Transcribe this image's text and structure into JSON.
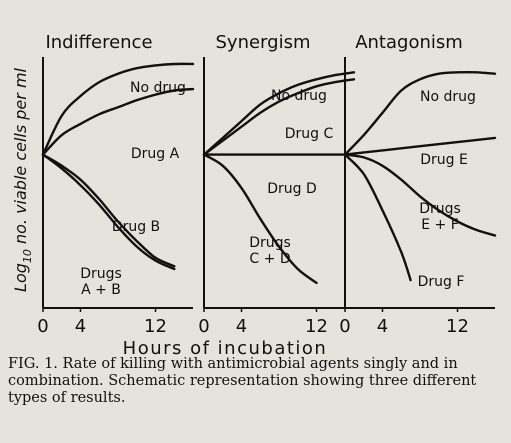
{
  "chart_data": {
    "type": "line",
    "xlabel": "Hours of incubation",
    "ylabel": "Log10 no. viable cells per ml",
    "ylabel_main": "Log",
    "ylabel_sub": "10",
    "ylabel_rest": " no. viable cells per ml",
    "x_ticks": [
      "0",
      "4",
      "12"
    ],
    "xlim": [
      0,
      16
    ],
    "panels": [
      {
        "title": "Indifference",
        "series": [
          {
            "name": "No drug",
            "label_lines": [
              "No drug"
            ],
            "x": [
              0,
              2,
              4,
              6,
              8,
              10,
              12,
              14,
              16
            ],
            "y": [
              5.5,
              6.9,
              7.6,
              8.1,
              8.4,
              8.6,
              8.7,
              8.75,
              8.75
            ]
          },
          {
            "name": "Drug A",
            "label_lines": [
              "Drug A"
            ],
            "x": [
              0,
              2,
              4,
              6,
              8,
              10,
              12,
              14,
              16
            ],
            "y": [
              5.5,
              6.2,
              6.6,
              6.95,
              7.2,
              7.45,
              7.65,
              7.8,
              7.85
            ]
          },
          {
            "name": "Drug B",
            "label_lines": [
              "Drug B"
            ],
            "x": [
              0,
              2,
              4,
              6,
              8,
              10,
              12,
              14
            ],
            "y": [
              5.5,
              5.1,
              4.6,
              3.9,
              3.1,
              2.4,
              1.8,
              1.5
            ]
          },
          {
            "name": "Drugs A + B",
            "label_lines": [
              "Drugs",
              "A + B"
            ],
            "x": [
              0,
              2,
              4,
              6,
              8,
              10,
              12,
              14
            ],
            "y": [
              5.5,
              5.0,
              4.4,
              3.7,
              2.9,
              2.2,
              1.7,
              1.4
            ]
          }
        ]
      },
      {
        "title": "Synergism",
        "series": [
          {
            "name": "No drug",
            "label_lines": [
              "No drug"
            ],
            "x": [
              0,
              2,
              4,
              6,
              8,
              10,
              12,
              14,
              16
            ],
            "y": [
              5.5,
              6.1,
              6.7,
              7.3,
              7.7,
              8.0,
              8.2,
              8.35,
              8.45
            ]
          },
          {
            "name": "Drug C",
            "label_lines": [
              "Drug C"
            ],
            "x": [
              0,
              2,
              4,
              6,
              8,
              10,
              12,
              14,
              16
            ],
            "y": [
              5.5,
              6.0,
              6.5,
              7.0,
              7.4,
              7.7,
              7.95,
              8.1,
              8.2
            ]
          },
          {
            "name": "Drug D",
            "label_lines": [
              "Drug D"
            ],
            "x": [
              0,
              16
            ],
            "y": [
              5.5,
              5.5
            ]
          },
          {
            "name": "Drugs C + D",
            "label_lines": [
              "Drugs",
              "C + D"
            ],
            "x": [
              0,
              2,
              4,
              6,
              8,
              10,
              12
            ],
            "y": [
              5.5,
              5.1,
              4.3,
              3.2,
              2.2,
              1.4,
              0.9
            ]
          }
        ]
      },
      {
        "title": "Antagonism",
        "series": [
          {
            "name": "No drug",
            "label_lines": [
              "No drug"
            ],
            "x": [
              0,
              2,
              4,
              6,
              8,
              10,
              12,
              14,
              16
            ],
            "y": [
              5.5,
              6.2,
              7.0,
              7.8,
              8.2,
              8.4,
              8.45,
              8.45,
              8.4
            ]
          },
          {
            "name": "Drug E",
            "label_lines": [
              "Drug E"
            ],
            "x": [
              0,
              4,
              8,
              12,
              16
            ],
            "y": [
              5.5,
              5.65,
              5.8,
              5.95,
              6.1
            ]
          },
          {
            "name": "Drugs E + F",
            "label_lines": [
              "Drugs",
              "E + F"
            ],
            "x": [
              0,
              2,
              4,
              6,
              8,
              10,
              12,
              14,
              16
            ],
            "y": [
              5.5,
              5.4,
              5.1,
              4.6,
              4.0,
              3.5,
              3.1,
              2.8,
              2.6
            ]
          },
          {
            "name": "Drug F",
            "label_lines": [
              "Drug F"
            ],
            "x": [
              0,
              2,
              4,
              6,
              7
            ],
            "y": [
              5.5,
              4.8,
              3.5,
              2.0,
              1.0
            ]
          }
        ]
      }
    ]
  },
  "caption": "FIG. 1. Rate of killing with antimicrobial agents singly and in combination. Schematic representation showing three different types of results."
}
